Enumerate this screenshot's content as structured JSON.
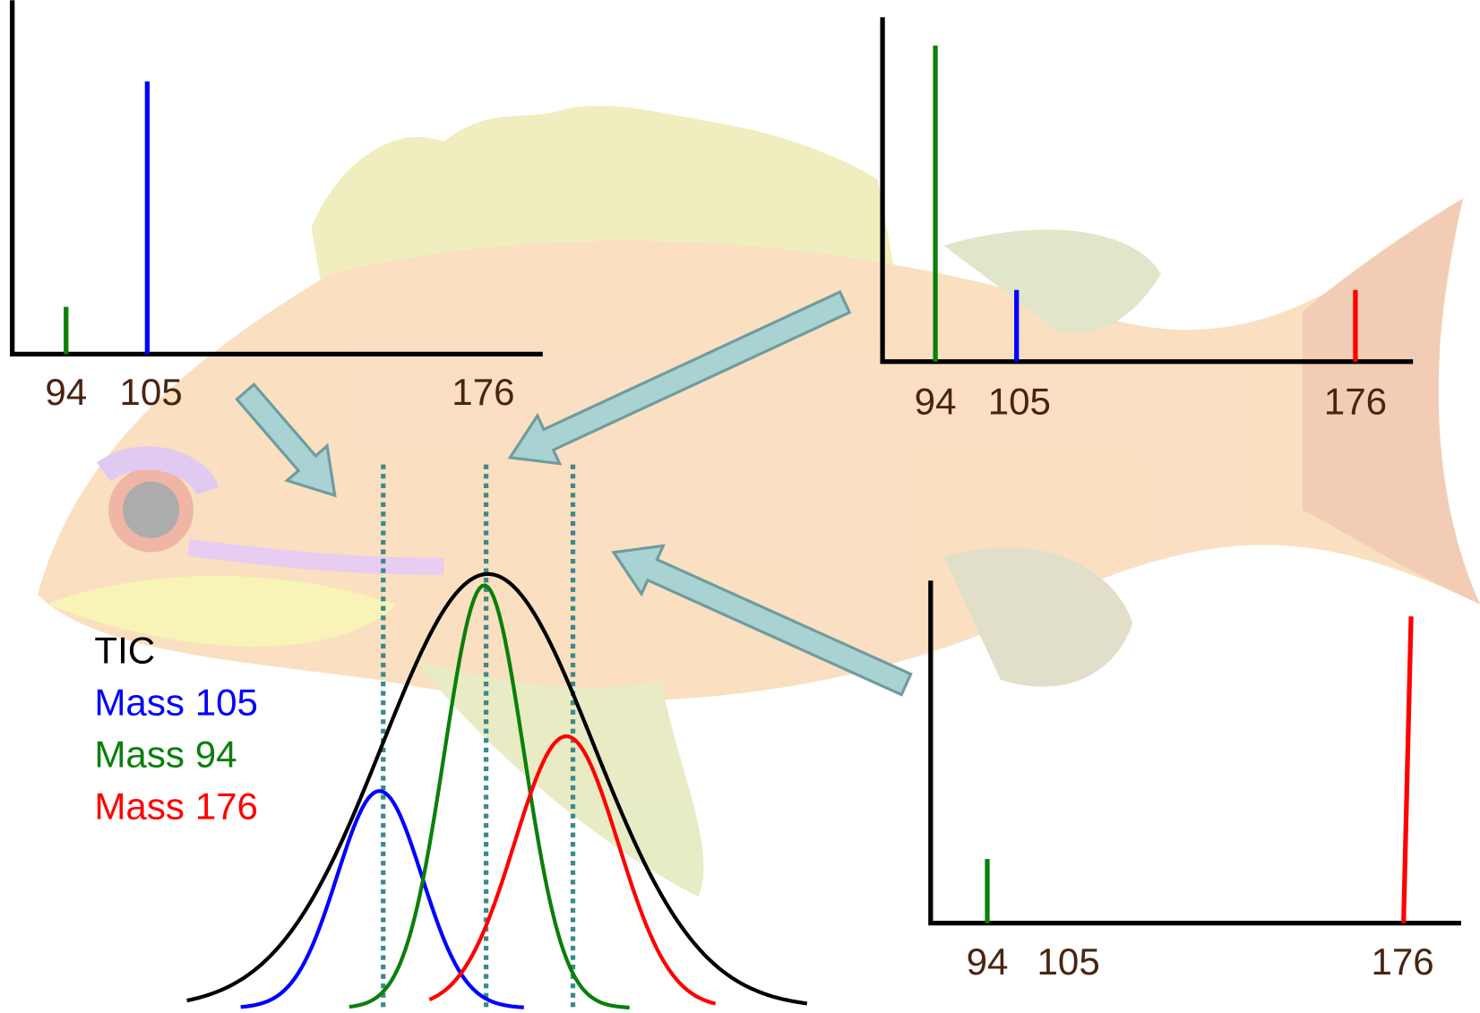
{
  "spectra": [
    {
      "labels": [
        "94",
        "105",
        "176"
      ]
    },
    {
      "labels": [
        "94",
        "105",
        "176"
      ]
    },
    {
      "labels": [
        "94",
        "105",
        "176"
      ]
    }
  ],
  "legend": [
    "TIC",
    "Mass 105",
    "Mass 94",
    "Mass 176"
  ]
}
